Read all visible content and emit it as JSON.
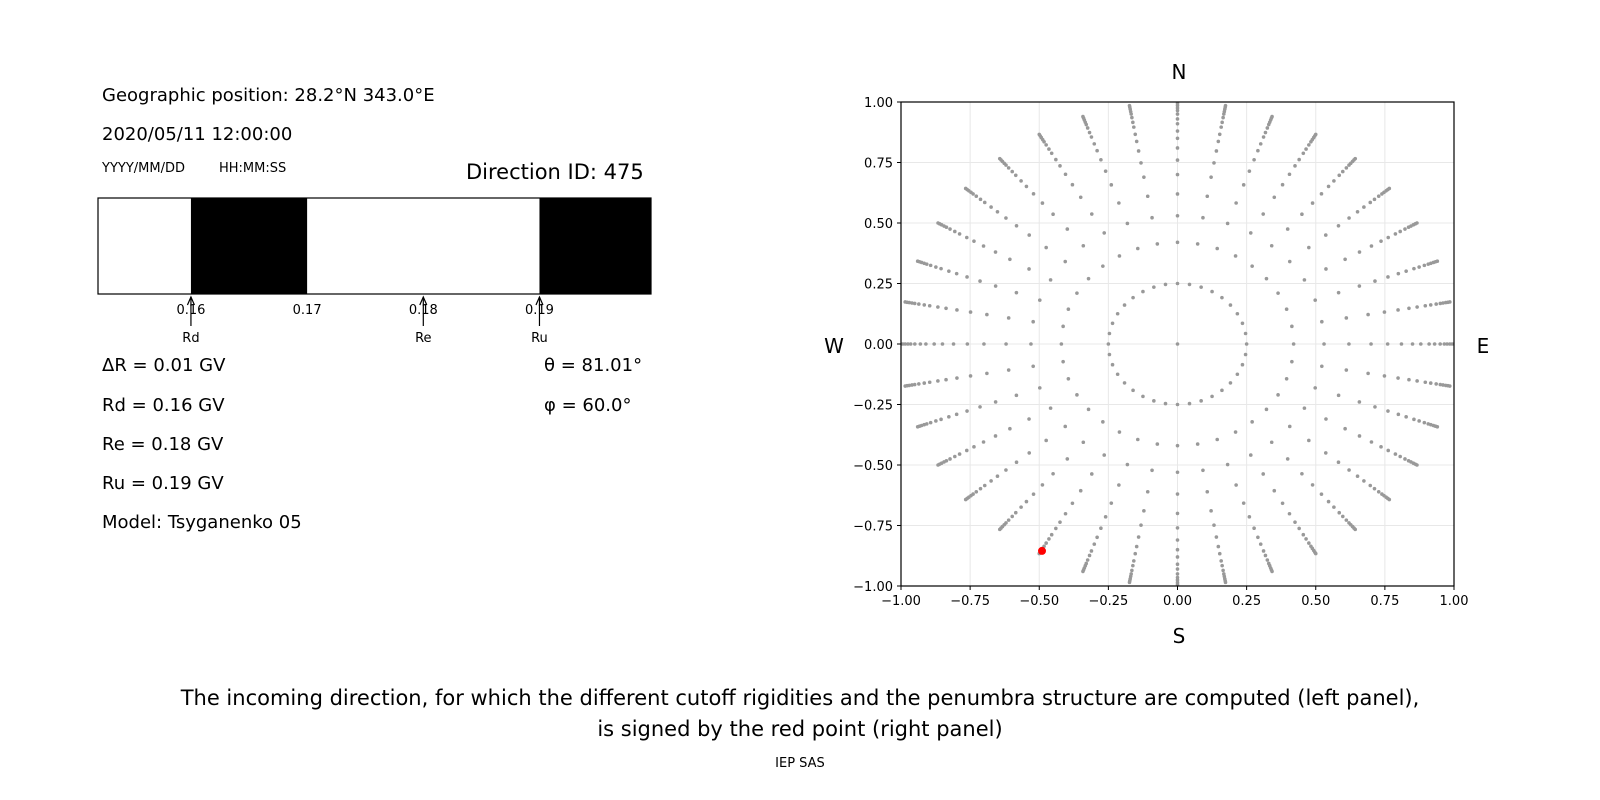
{
  "left_panel": {
    "geo_position": "Geographic position: 28.2°N 343.0°E",
    "datetime": "2020/05/11 12:00:00",
    "date_format": "YYYY/MM/DD",
    "time_format": "HH:MM:SS",
    "direction_id": "Direction ID: 475",
    "delta_r": "ΔR = 0.01 GV",
    "rd": "Rd = 0.16 GV",
    "re": "Re = 0.18 GV",
    "ru": "Ru = 0.19 GV",
    "model": "Model: Tsyganenko 05",
    "theta": "θ = 81.01°",
    "phi": "φ = 60.0°"
  },
  "chart_data": [
    {
      "type": "penumbra-bar",
      "xlim": [
        0.152,
        0.1996
      ],
      "ticks": [
        "0.16",
        "0.17",
        "0.18",
        "0.19"
      ],
      "tick_values": [
        0.16,
        0.17,
        0.18,
        0.19
      ],
      "forbidden_segments": [
        [
          0.16,
          0.17
        ],
        [
          0.19,
          0.1996
        ]
      ],
      "markers": [
        {
          "label": "Rd",
          "value": 0.16
        },
        {
          "label": "Re",
          "value": 0.18
        },
        {
          "label": "Ru",
          "value": 0.19
        }
      ]
    },
    {
      "type": "scatter",
      "xlim": [
        -1,
        1
      ],
      "ylim": [
        -1,
        1
      ],
      "xticks": [
        "−1.00",
        "−0.75",
        "−0.50",
        "−0.25",
        "0.00",
        "0.25",
        "0.50",
        "0.75",
        "1.00"
      ],
      "yticks": [
        "−1.00",
        "−0.75",
        "−0.50",
        "−0.25",
        "0.00",
        "0.25",
        "0.50",
        "0.75",
        "1.00"
      ],
      "tick_values": [
        -1,
        -0.75,
        -0.5,
        -0.25,
        0,
        0.25,
        0.5,
        0.75,
        1
      ],
      "grid": true,
      "compass": {
        "n": "N",
        "s": "S",
        "e": "E",
        "w": "W"
      },
      "grid_series": {
        "rays": 36,
        "ray_step_deg": 10,
        "radii": [
          0.25,
          0.42,
          0.53,
          0.62,
          0.7,
          0.76,
          0.81,
          0.85,
          0.88,
          0.91,
          0.93,
          0.95,
          0.965,
          0.975,
          0.985,
          0.993,
          1.0
        ],
        "center_point": true,
        "color": "#999999"
      },
      "highlight": {
        "x": -0.49,
        "y": -0.855,
        "color": "#ff0000"
      }
    }
  ],
  "caption": {
    "line1": "The incoming direction, for which the different cutoff rigidities and the penumbra structure are computed (left panel),",
    "line2": "is signed by the red point (right panel)",
    "credit": "IEP SAS"
  }
}
